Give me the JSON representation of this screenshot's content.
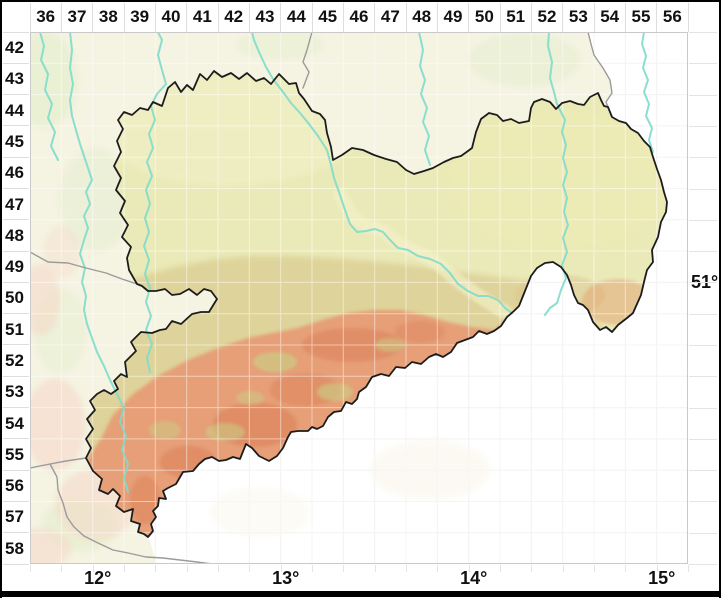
{
  "grid": {
    "column_labels": [
      "36",
      "37",
      "38",
      "39",
      "40",
      "41",
      "42",
      "43",
      "44",
      "45",
      "46",
      "47",
      "48",
      "49",
      "50",
      "51",
      "52",
      "53",
      "54",
      "55",
      "56"
    ],
    "row_labels": [
      "42",
      "43",
      "44",
      "45",
      "46",
      "47",
      "48",
      "49",
      "50",
      "51",
      "52",
      "53",
      "54",
      "55",
      "56",
      "57",
      "58"
    ]
  },
  "axes": {
    "longitude_labels": [
      "12°",
      "13°",
      "14°",
      "15°"
    ],
    "latitude_labels": [
      "51°"
    ]
  },
  "colors": {
    "frame": "#000000",
    "background": "#ffffff",
    "label_text": "#111111",
    "grid_line": "#e9e9e9",
    "grid_line_on_map": "rgba(255,255,255,0.5)",
    "map_border": "#c9c9c9",
    "outside_german": "#f5f3e2",
    "outside_green": "#e2eecb",
    "outside_pink": "#f6d6c6",
    "saxony_lowland": "#eaeab8",
    "saxony_lowland_pale": "#f1f1ca",
    "saxony_midland": "#dbce93",
    "saxony_upland": "#e69b74",
    "saxony_peaks": "#db7f58",
    "saxony_khaki": "#cad085",
    "elbe_valley": "#f2efc6",
    "river": "#7edccb",
    "saxony_border": "#1c1c1c",
    "state_border": "#9b9b9b"
  }
}
